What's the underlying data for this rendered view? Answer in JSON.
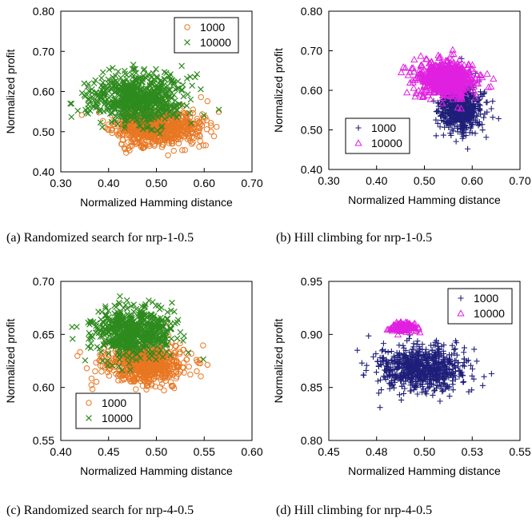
{
  "chart_data": [
    {
      "type": "scatter",
      "caption": "(a) Randomized search for nrp-1-0.5",
      "xlabel": "Normalized Hamming distance",
      "ylabel": "Normalized profit",
      "xlim": [
        0.3,
        0.7
      ],
      "ylim": [
        0.4,
        0.8
      ],
      "xticks": [
        "0.30",
        "0.40",
        "0.50",
        "0.60",
        "0.70"
      ],
      "yticks": [
        "0.40",
        "0.50",
        "0.60",
        "0.70",
        "0.80"
      ],
      "grid": false,
      "legend_position": "top-right",
      "series": [
        {
          "name": "1000",
          "marker": "circle",
          "color": "#e87722",
          "cloud": {
            "cx": 0.5,
            "cy": 0.51,
            "sx": 0.045,
            "sy": 0.022,
            "n": 700,
            "seed": 11
          }
        },
        {
          "name": "10000",
          "marker": "x",
          "color": "#2e8b1e",
          "cloud": {
            "cx": 0.46,
            "cy": 0.585,
            "sx": 0.045,
            "sy": 0.03,
            "n": 700,
            "seed": 12
          }
        }
      ]
    },
    {
      "type": "scatter",
      "caption": "(b) Hill climbing for nrp-1-0.5",
      "xlabel": "Normalized Hamming distance",
      "ylabel": "Normalized profit",
      "xlim": [
        0.3,
        0.7
      ],
      "ylim": [
        0.4,
        0.8
      ],
      "xticks": [
        "0.30",
        "0.40",
        "0.50",
        "0.60",
        "0.70"
      ],
      "yticks": [
        "0.40",
        "0.50",
        "0.60",
        "0.70",
        "0.80"
      ],
      "grid": false,
      "legend_position": "bottom-left",
      "series": [
        {
          "name": "1000",
          "marker": "plus",
          "color": "#1f1f7a",
          "cloud": {
            "cx": 0.575,
            "cy": 0.555,
            "sx": 0.022,
            "sy": 0.03,
            "n": 650,
            "seed": 21
          }
        },
        {
          "name": "10000",
          "marker": "triangle",
          "color": "#e020e0",
          "cloud": {
            "cx": 0.545,
            "cy": 0.63,
            "sx": 0.03,
            "sy": 0.022,
            "n": 650,
            "seed": 22
          }
        }
      ]
    },
    {
      "type": "scatter",
      "caption": "(c) Randomized search for nrp-4-0.5",
      "xlabel": "Normalized Hamming distance",
      "ylabel": "Normalized profit",
      "xlim": [
        0.4,
        0.6
      ],
      "ylim": [
        0.55,
        0.7
      ],
      "xticks": [
        "0.40",
        "0.45",
        "0.50",
        "0.55",
        "0.60"
      ],
      "yticks": [
        "0.55",
        "0.60",
        "0.65",
        "0.70"
      ],
      "grid": false,
      "legend_position": "bottom-left",
      "series": [
        {
          "name": "1000",
          "marker": "circle",
          "color": "#e87722",
          "cloud": {
            "cx": 0.49,
            "cy": 0.622,
            "sx": 0.022,
            "sy": 0.01,
            "n": 650,
            "seed": 31
          }
        },
        {
          "name": "10000",
          "marker": "x",
          "color": "#2e8b1e",
          "cloud": {
            "cx": 0.475,
            "cy": 0.652,
            "sx": 0.02,
            "sy": 0.011,
            "n": 650,
            "seed": 32
          }
        }
      ]
    },
    {
      "type": "scatter",
      "caption": "(d) Hill climbing for nrp-4-0.5",
      "xlabel": "Normalized Hamming distance",
      "ylabel": "Normalized profit",
      "xlim": [
        0.45,
        0.55
      ],
      "ylim": [
        0.8,
        0.95
      ],
      "xticks": [
        "0.45",
        "0.48",
        "0.50",
        "0.53",
        "0.55"
      ],
      "yticks": [
        "0.80",
        "0.85",
        "0.90",
        "0.95"
      ],
      "grid": false,
      "legend_position": "top-right",
      "series": [
        {
          "name": "1000",
          "marker": "plus",
          "color": "#1f1f7a",
          "cloud": {
            "cx": 0.499,
            "cy": 0.868,
            "sx": 0.011,
            "sy": 0.011,
            "n": 700,
            "seed": 41
          }
        },
        {
          "name": "10000",
          "marker": "triangle",
          "color": "#e020e0",
          "cloud": {
            "cx": 0.4885,
            "cy": 0.907,
            "sx": 0.0035,
            "sy": 0.0022,
            "n": 140,
            "seed": 42
          }
        }
      ]
    }
  ]
}
